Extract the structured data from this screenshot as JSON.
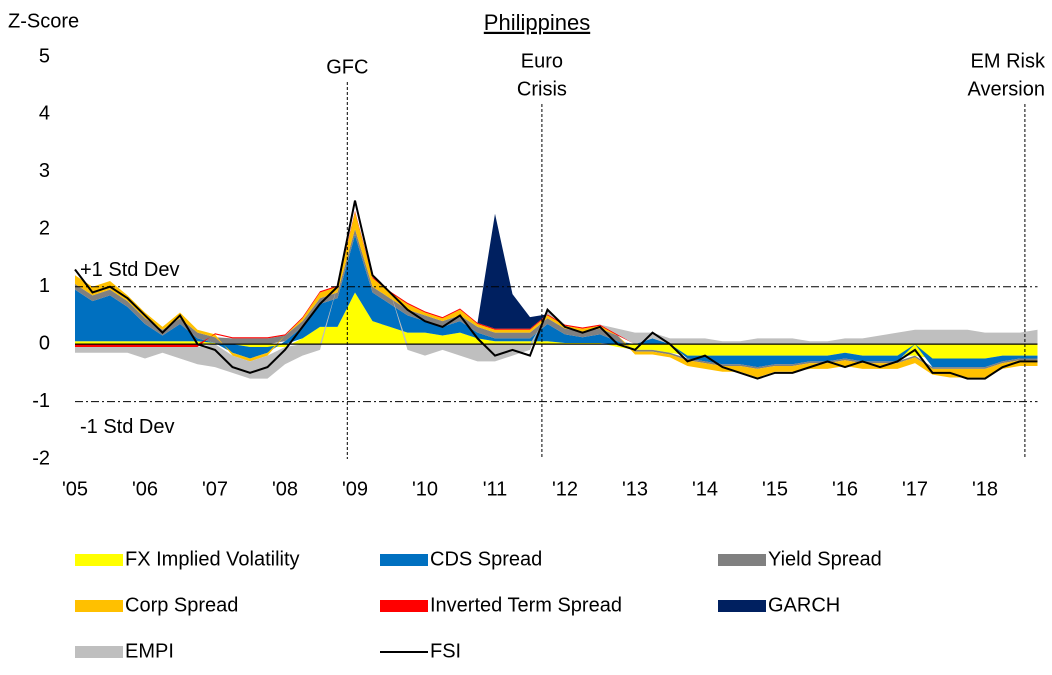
{
  "chart_data": {
    "type": "stacked_area",
    "title": "Philippines",
    "y_label": "Z-Score",
    "xlim": [
      2005,
      2018.75
    ],
    "ylim": [
      -2,
      5
    ],
    "yticks": [
      -2,
      -1,
      0,
      1,
      2,
      3,
      4,
      5
    ],
    "xticks": [
      {
        "value": 2005,
        "label": "'05"
      },
      {
        "value": 2006,
        "label": "'06"
      },
      {
        "value": 2007,
        "label": "'07"
      },
      {
        "value": 2008,
        "label": "'08"
      },
      {
        "value": 2009,
        "label": "'09"
      },
      {
        "value": 2010,
        "label": "'10"
      },
      {
        "value": 2011,
        "label": "'11"
      },
      {
        "value": 2012,
        "label": "'12"
      },
      {
        "value": 2013,
        "label": "'13"
      },
      {
        "value": 2014,
        "label": "'14"
      },
      {
        "value": 2015,
        "label": "'15"
      },
      {
        "value": 2016,
        "label": "'16"
      },
      {
        "value": 2017,
        "label": "'17"
      },
      {
        "value": 2018,
        "label": "'18"
      }
    ],
    "hlines": [
      {
        "value": 1,
        "label": "+1 Std Dev"
      },
      {
        "value": -1,
        "label": "-1 Std Dev"
      }
    ],
    "events": [
      {
        "x": 2008.89,
        "label": [
          "GFC"
        ]
      },
      {
        "x": 2011.67,
        "label": [
          "Euro",
          "Crisis"
        ]
      },
      {
        "x": 2018.57,
        "label": [
          "EM Risk",
          "Aversion"
        ]
      }
    ],
    "x": [
      2005,
      2005.25,
      2005.5,
      2005.75,
      2006,
      2006.25,
      2006.5,
      2006.75,
      2007,
      2007.25,
      2007.5,
      2007.75,
      2008,
      2008.25,
      2008.5,
      2008.75,
      2009,
      2009.25,
      2009.5,
      2009.75,
      2010,
      2010.25,
      2010.5,
      2010.75,
      2011,
      2011.25,
      2011.5,
      2011.75,
      2012,
      2012.25,
      2012.5,
      2012.75,
      2013,
      2013.25,
      2013.5,
      2013.75,
      2014,
      2014.25,
      2014.5,
      2014.75,
      2015,
      2015.25,
      2015.5,
      2015.75,
      2016,
      2016.25,
      2016.5,
      2016.75,
      2017,
      2017.25,
      2017.5,
      2017.75,
      2018,
      2018.25,
      2018.5,
      2018.75
    ],
    "series": [
      {
        "name": "FX Implied Volatility",
        "color": "#ffff00",
        "style": "area",
        "values": [
          0.05,
          0.05,
          0.05,
          0.05,
          0.05,
          0.05,
          0.05,
          0.05,
          0.02,
          0,
          -0.05,
          -0.05,
          -0.05,
          0.1,
          0.3,
          0.3,
          0.9,
          0.4,
          0.3,
          0.2,
          0.2,
          0.15,
          0.2,
          0.1,
          0.05,
          0.05,
          0.05,
          0.05,
          0.02,
          0.02,
          0.02,
          -0.05,
          -0.1,
          -0.1,
          -0.15,
          -0.2,
          -0.2,
          -0.2,
          -0.2,
          -0.2,
          -0.2,
          -0.2,
          -0.2,
          -0.2,
          -0.15,
          -0.2,
          -0.2,
          -0.2,
          -0.2,
          -0.25,
          -0.25,
          -0.25,
          -0.25,
          -0.2,
          -0.2,
          -0.2
        ]
      },
      {
        "name": "CDS Spread",
        "color": "#0070c0",
        "style": "area",
        "values": [
          0.9,
          0.7,
          0.8,
          0.6,
          0.3,
          0.1,
          0.3,
          0.05,
          0,
          -0.15,
          -0.2,
          -0.1,
          0.05,
          0.2,
          0.4,
          0.5,
          1.0,
          0.5,
          0.4,
          0.3,
          0.2,
          0.15,
          0.2,
          0.1,
          0.05,
          0.05,
          0.05,
          0.3,
          0.15,
          0.1,
          0.15,
          0.05,
          0,
          0.1,
          0,
          -0.05,
          -0.1,
          -0.15,
          -0.15,
          -0.2,
          -0.15,
          -0.15,
          -0.1,
          -0.1,
          -0.1,
          -0.1,
          -0.1,
          -0.1,
          0,
          -0.15,
          -0.15,
          -0.15,
          -0.15,
          -0.1,
          -0.05,
          -0.05
        ]
      },
      {
        "name": "Yield Spread",
        "color": "#808080",
        "style": "area",
        "values": [
          0.1,
          0.1,
          0.1,
          0.1,
          0.1,
          0.1,
          0.1,
          0.1,
          0.1,
          0.1,
          0.1,
          0.1,
          0.1,
          0.1,
          0.1,
          0.1,
          0.1,
          0.1,
          0.1,
          0.1,
          0.1,
          0.1,
          0.1,
          0.1,
          0.1,
          0.1,
          0.1,
          0.1,
          0.1,
          0.1,
          0.1,
          0.1,
          -0.03,
          -0.03,
          -0.03,
          -0.03,
          -0.03,
          -0.03,
          -0.03,
          -0.03,
          -0.03,
          -0.03,
          -0.03,
          -0.03,
          -0.03,
          -0.03,
          -0.03,
          -0.03,
          -0.03,
          -0.03,
          -0.03,
          -0.03,
          -0.03,
          -0.03,
          -0.03,
          -0.03
        ]
      },
      {
        "name": "Corp Spread",
        "color": "#ffc000",
        "style": "area",
        "values": [
          0.15,
          0.15,
          0.15,
          0.1,
          0.1,
          0.05,
          0.1,
          0.05,
          0.05,
          -0.05,
          -0.05,
          -0.05,
          0,
          0.05,
          0.1,
          0.1,
          0.3,
          0.15,
          0.1,
          0.1,
          0.05,
          0.05,
          0.1,
          0.05,
          0.05,
          0.05,
          0.05,
          0.05,
          0.05,
          0.05,
          0.05,
          0,
          -0.05,
          -0.05,
          -0.05,
          -0.1,
          -0.1,
          -0.1,
          -0.1,
          -0.15,
          -0.1,
          -0.1,
          -0.1,
          -0.1,
          -0.1,
          -0.1,
          -0.1,
          -0.1,
          -0.1,
          -0.1,
          -0.15,
          -0.15,
          -0.15,
          -0.1,
          -0.1,
          -0.1
        ]
      },
      {
        "name": "Inverted Term Spread",
        "color": "#ff0000",
        "style": "area",
        "values": [
          -0.05,
          -0.05,
          -0.05,
          -0.05,
          -0.05,
          -0.05,
          -0.05,
          -0.05,
          0.02,
          0.02,
          0.02,
          0.02,
          0.02,
          0.02,
          0.02,
          0.02,
          0.02,
          0.02,
          0.02,
          0.02,
          0.02,
          0.02,
          0.02,
          0.02,
          0.02,
          0.02,
          0.02,
          0.02,
          0.02,
          0.02,
          0.02,
          0.02,
          0,
          0,
          0,
          0,
          0,
          0,
          0,
          0,
          0,
          0,
          0,
          0,
          0,
          0,
          0,
          0,
          0,
          0,
          0,
          0,
          0,
          0,
          0,
          0
        ]
      },
      {
        "name": "GARCH",
        "color": "#002060",
        "style": "area",
        "values": [
          0,
          0,
          0,
          0,
          0,
          0,
          0,
          0,
          0,
          0,
          0,
          0,
          0,
          0,
          0,
          0,
          0,
          0,
          0,
          0,
          0,
          0,
          0,
          0,
          2.0,
          0.6,
          0.2,
          0,
          0,
          0,
          0,
          0,
          0,
          0,
          0,
          0,
          0,
          0,
          0,
          0,
          0,
          0,
          0,
          0,
          0,
          0,
          0,
          0,
          0,
          0,
          0,
          0,
          0,
          0,
          0,
          0
        ]
      },
      {
        "name": "EMPI",
        "color": "#bfbfbf",
        "style": "area",
        "values": [
          -0.1,
          -0.1,
          -0.1,
          -0.1,
          -0.2,
          -0.1,
          -0.2,
          -0.3,
          -0.4,
          -0.3,
          -0.3,
          -0.4,
          -0.3,
          -0.2,
          -0.1,
          0,
          0,
          0,
          0,
          -0.1,
          -0.2,
          -0.1,
          -0.2,
          -0.3,
          -0.3,
          -0.2,
          -0.1,
          0.1,
          0,
          0,
          0,
          0.1,
          0.2,
          0.1,
          0.1,
          0.1,
          0.1,
          0.05,
          0.05,
          0.1,
          0.1,
          0.1,
          0.05,
          0.05,
          0.1,
          0.1,
          0.15,
          0.2,
          0.25,
          0.25,
          0.25,
          0.25,
          0.2,
          0.2,
          0.2,
          0.25
        ]
      },
      {
        "name": "FSI",
        "color": "#000000",
        "style": "line",
        "values": [
          1.3,
          0.9,
          1.0,
          0.8,
          0.5,
          0.2,
          0.5,
          0.0,
          -0.1,
          -0.4,
          -0.5,
          -0.4,
          -0.1,
          0.3,
          0.7,
          1.0,
          2.5,
          1.2,
          0.9,
          0.6,
          0.4,
          0.3,
          0.5,
          0.1,
          -0.2,
          -0.1,
          -0.2,
          0.6,
          0.3,
          0.2,
          0.3,
          0.0,
          -0.1,
          0.2,
          0.0,
          -0.3,
          -0.2,
          -0.4,
          -0.5,
          -0.6,
          -0.5,
          -0.5,
          -0.4,
          -0.3,
          -0.4,
          -0.3,
          -0.4,
          -0.3,
          -0.1,
          -0.5,
          -0.5,
          -0.6,
          -0.6,
          -0.4,
          -0.3,
          -0.3
        ]
      }
    ]
  }
}
